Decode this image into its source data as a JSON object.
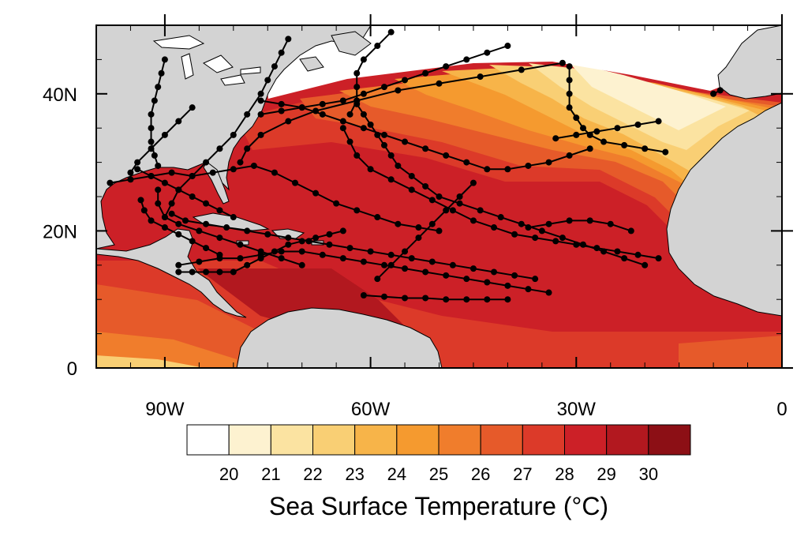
{
  "map": {
    "type": "sst-map-with-storm-tracks",
    "lon_range": [
      -100,
      0
    ],
    "lat_range": [
      0,
      50
    ],
    "x_ticks": [
      {
        "lon": -90,
        "label": "90W"
      },
      {
        "lon": -60,
        "label": "60W"
      },
      {
        "lon": -30,
        "label": "30W"
      },
      {
        "lon": 0,
        "label": "0"
      }
    ],
    "y_ticks": [
      {
        "lat": 0,
        "label": "0"
      },
      {
        "lat": 20,
        "label": "20N"
      },
      {
        "lat": 40,
        "label": "40N"
      }
    ],
    "land_color": "#d3d3d3",
    "track_color": "#000000"
  },
  "colorbar": {
    "title": "Sea Surface Temperature (°C)",
    "levels": [
      {
        "label": "20",
        "color": "#ffffff"
      },
      {
        "label": "21",
        "color": "#fdf2d0"
      },
      {
        "label": "22",
        "color": "#fbe3a1"
      },
      {
        "label": "23",
        "color": "#f9cf74"
      },
      {
        "label": "24",
        "color": "#f7b449"
      },
      {
        "label": "25",
        "color": "#f59a2f"
      },
      {
        "label": "26",
        "color": "#f07d2c"
      },
      {
        "label": "27",
        "color": "#e65a2a"
      },
      {
        "label": "28",
        "color": "#dc3a29"
      },
      {
        "label": "29",
        "color": "#cc2027"
      },
      {
        "label": "30",
        "color": "#b2181f"
      },
      {
        "label": "",
        "color": "#8c0f15"
      }
    ]
  },
  "chart_data": {
    "type": "map",
    "tracks": [
      {
        "points": [
          [
            -50,
            20
          ],
          [
            -53,
            20.5
          ],
          [
            -56,
            21
          ],
          [
            -59,
            22
          ],
          [
            -62,
            23
          ],
          [
            -65,
            24
          ],
          [
            -68,
            25.5
          ],
          [
            -71,
            27
          ],
          [
            -74,
            28.5
          ],
          [
            -77,
            29.5
          ],
          [
            -80,
            29
          ],
          [
            -83,
            28.5
          ],
          [
            -86,
            28
          ],
          [
            -89,
            28.5
          ],
          [
            -92,
            28
          ],
          [
            -95,
            27.5
          ],
          [
            -98,
            27
          ]
        ]
      },
      {
        "points": [
          [
            -36,
            13
          ],
          [
            -39,
            13.5
          ],
          [
            -42,
            14
          ],
          [
            -45,
            14.5
          ],
          [
            -48,
            15
          ],
          [
            -51,
            15.5
          ],
          [
            -54,
            16
          ],
          [
            -57,
            16.5
          ],
          [
            -60,
            17
          ],
          [
            -63,
            17.5
          ],
          [
            -66,
            18
          ],
          [
            -69,
            18.5
          ],
          [
            -72,
            19
          ],
          [
            -75,
            19.5
          ],
          [
            -78,
            20
          ],
          [
            -81,
            20.5
          ],
          [
            -84,
            21
          ],
          [
            -87,
            21.5
          ],
          [
            -89,
            22.5
          ]
        ]
      },
      {
        "points": [
          [
            -34,
            11
          ],
          [
            -37,
            11.5
          ],
          [
            -40,
            12
          ],
          [
            -43,
            12.5
          ],
          [
            -46,
            13
          ],
          [
            -49,
            13.5
          ],
          [
            -52,
            14
          ],
          [
            -55,
            14.5
          ],
          [
            -58,
            15
          ],
          [
            -61,
            15.5
          ],
          [
            -64,
            16
          ],
          [
            -67,
            16.5
          ],
          [
            -70,
            17
          ],
          [
            -73,
            17
          ],
          [
            -76,
            16.5
          ],
          [
            -79,
            16
          ],
          [
            -82,
            16
          ],
          [
            -85,
            15.5
          ],
          [
            -88,
            15
          ]
        ]
      },
      {
        "points": [
          [
            -40,
            10
          ],
          [
            -43,
            10
          ],
          [
            -46,
            10
          ],
          [
            -49,
            10
          ],
          [
            -52,
            10.2
          ],
          [
            -55,
            10.2
          ],
          [
            -58,
            10.4
          ],
          [
            -61,
            10.6
          ]
        ]
      },
      {
        "points": [
          [
            -20,
            15
          ],
          [
            -23,
            16
          ],
          [
            -26,
            17
          ],
          [
            -29,
            18
          ],
          [
            -32,
            19
          ],
          [
            -35,
            20
          ],
          [
            -38,
            21
          ],
          [
            -41,
            22
          ],
          [
            -44,
            23
          ],
          [
            -47,
            24
          ],
          [
            -50,
            25
          ],
          [
            -52,
            26.5
          ],
          [
            -54,
            28
          ],
          [
            -56,
            29.5
          ],
          [
            -57,
            31
          ],
          [
            -58,
            32.5
          ],
          [
            -59,
            34
          ],
          [
            -60,
            35.5
          ],
          [
            -61,
            37
          ],
          [
            -62,
            38.5
          ]
        ]
      },
      {
        "points": [
          [
            -18,
            16
          ],
          [
            -21,
            16.5
          ],
          [
            -24,
            17
          ],
          [
            -27,
            17.5
          ],
          [
            -30,
            18
          ],
          [
            -33,
            18.5
          ],
          [
            -36,
            19
          ],
          [
            -39,
            19.5
          ],
          [
            -42,
            20.5
          ],
          [
            -45,
            21.5
          ],
          [
            -48,
            23
          ],
          [
            -51,
            24.5
          ],
          [
            -54,
            26
          ],
          [
            -57,
            27.5
          ],
          [
            -60,
            29
          ],
          [
            -62,
            31
          ],
          [
            -63,
            33
          ],
          [
            -64,
            35
          ]
        ]
      },
      {
        "points": [
          [
            -28,
            32
          ],
          [
            -31,
            31
          ],
          [
            -34,
            30
          ],
          [
            -37,
            29.5
          ],
          [
            -40,
            29
          ],
          [
            -43,
            29
          ],
          [
            -46,
            30
          ],
          [
            -49,
            31
          ],
          [
            -52,
            32
          ],
          [
            -55,
            33
          ],
          [
            -58,
            34
          ],
          [
            -61,
            35
          ],
          [
            -64,
            36
          ],
          [
            -67,
            37
          ],
          [
            -70,
            38
          ],
          [
            -73,
            38.5
          ],
          [
            -76,
            39
          ]
        ]
      },
      {
        "points": [
          [
            -18,
            36
          ],
          [
            -21,
            35.5
          ],
          [
            -24,
            35
          ],
          [
            -27,
            34.5
          ],
          [
            -30,
            34
          ],
          [
            -33,
            33.5
          ]
        ]
      },
      {
        "points": [
          [
            -40,
            47
          ],
          [
            -43,
            46
          ],
          [
            -46,
            45
          ],
          [
            -49,
            44
          ],
          [
            -52,
            43
          ],
          [
            -55,
            42
          ],
          [
            -58,
            41
          ],
          [
            -61,
            40
          ],
          [
            -64,
            39
          ],
          [
            -67,
            38.5
          ],
          [
            -70,
            38
          ],
          [
            -73,
            37.5
          ],
          [
            -76,
            37
          ]
        ]
      },
      {
        "points": [
          [
            -32,
            44.5
          ],
          [
            -38,
            43.5
          ],
          [
            -44,
            42.5
          ],
          [
            -50,
            41.5
          ],
          [
            -56,
            40.5
          ],
          [
            -62,
            39
          ],
          [
            -68,
            37.5
          ],
          [
            -72,
            36
          ],
          [
            -76,
            34
          ],
          [
            -78,
            32
          ],
          [
            -79,
            30
          ]
        ]
      },
      {
        "points": [
          [
            -31,
            44
          ],
          [
            -31,
            42
          ],
          [
            -31,
            40
          ],
          [
            -31,
            38
          ],
          [
            -30,
            36.5
          ],
          [
            -29,
            35
          ],
          [
            -28,
            34
          ],
          [
            -26,
            33
          ],
          [
            -23,
            32.5
          ],
          [
            -20,
            32
          ],
          [
            -17,
            31.5
          ]
        ]
      },
      {
        "points": [
          [
            -57,
            49
          ],
          [
            -59,
            47
          ],
          [
            -61,
            45
          ],
          [
            -62,
            43
          ],
          [
            -62,
            41
          ],
          [
            -62,
            39
          ],
          [
            -63,
            37
          ]
        ]
      },
      {
        "points": [
          [
            -72,
            48
          ],
          [
            -73,
            46
          ],
          [
            -74,
            44
          ],
          [
            -75,
            42
          ],
          [
            -76,
            40
          ],
          [
            -78,
            37
          ],
          [
            -80,
            34
          ],
          [
            -82,
            32
          ],
          [
            -84,
            30
          ],
          [
            -86,
            28
          ],
          [
            -88,
            26
          ],
          [
            -89,
            24
          ],
          [
            -90,
            22
          ]
        ]
      },
      {
        "points": [
          [
            -90,
            45
          ],
          [
            -90.5,
            43
          ],
          [
            -91,
            41
          ],
          [
            -91.5,
            39
          ],
          [
            -92,
            37
          ],
          [
            -92,
            35
          ],
          [
            -92,
            33
          ],
          [
            -91.5,
            31
          ],
          [
            -91,
            29.5
          ]
        ]
      },
      {
        "points": [
          [
            -86,
            38
          ],
          [
            -88,
            36
          ],
          [
            -90,
            34
          ],
          [
            -92,
            32
          ],
          [
            -94,
            30
          ],
          [
            -95,
            28.5
          ]
        ]
      },
      {
        "points": [
          [
            -82,
            16.5
          ],
          [
            -84,
            17.5
          ],
          [
            -86,
            18.5
          ],
          [
            -88,
            19.5
          ],
          [
            -90,
            20.5
          ],
          [
            -92,
            21.5
          ],
          [
            -93,
            23
          ],
          [
            -93.5,
            24.5
          ]
        ]
      },
      {
        "points": [
          [
            -64,
            20
          ],
          [
            -66,
            19.5
          ],
          [
            -68,
            19
          ],
          [
            -70,
            18.5
          ],
          [
            -72,
            18
          ],
          [
            -74,
            17
          ],
          [
            -76,
            16
          ],
          [
            -78,
            15
          ],
          [
            -80,
            14
          ],
          [
            -82,
            14
          ],
          [
            -84,
            14
          ],
          [
            -86,
            14
          ],
          [
            -88,
            14
          ]
        ]
      },
      {
        "points": [
          [
            -22,
            20
          ],
          [
            -25,
            21
          ],
          [
            -28,
            21.5
          ],
          [
            -31,
            21.5
          ],
          [
            -34,
            21
          ],
          [
            -37,
            20.5
          ]
        ]
      },
      {
        "points": [
          [
            -45,
            27
          ],
          [
            -47,
            25
          ],
          [
            -49,
            23
          ],
          [
            -51,
            21
          ],
          [
            -53,
            19
          ],
          [
            -55,
            17
          ],
          [
            -57,
            15
          ],
          [
            -59,
            13
          ]
        ]
      },
      {
        "points": [
          [
            -80,
            22
          ],
          [
            -82,
            23
          ],
          [
            -84,
            24
          ],
          [
            -86,
            25
          ],
          [
            -88,
            26
          ],
          [
            -90,
            27
          ],
          [
            -92,
            28
          ],
          [
            -94,
            29
          ]
        ]
      },
      {
        "points": [
          [
            -70,
            15
          ],
          [
            -73,
            16
          ],
          [
            -76,
            17
          ],
          [
            -79,
            18
          ],
          [
            -82,
            19
          ],
          [
            -85,
            20
          ],
          [
            -88,
            21
          ],
          [
            -90,
            22
          ],
          [
            -91,
            24
          ],
          [
            -91,
            26
          ]
        ]
      },
      {
        "points": [
          [
            -10,
            40
          ],
          [
            -9,
            40.5
          ]
        ]
      }
    ],
    "title": "",
    "colorbar_label": "Sea Surface Temperature (°C)"
  }
}
